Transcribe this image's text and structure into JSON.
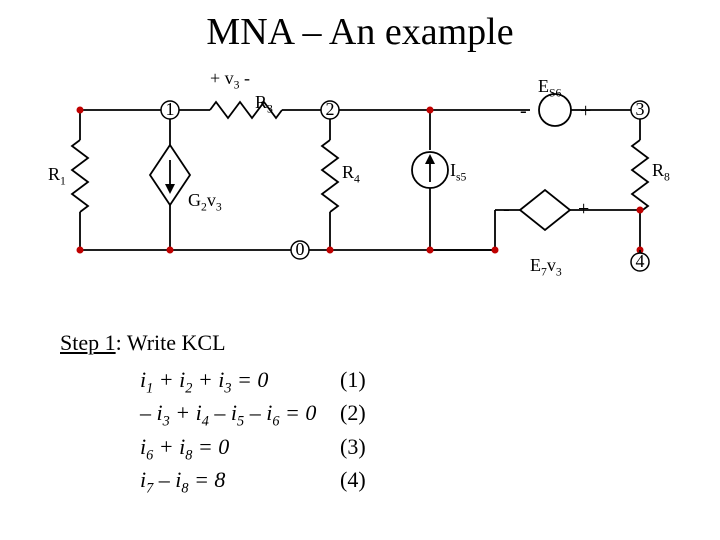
{
  "title": "MNA – An example",
  "step": {
    "label": "Step 1",
    "text": ": Write KCL"
  },
  "nodes": {
    "n1": "1",
    "n2": "2",
    "n3": "3",
    "n4": "4",
    "n0": "0"
  },
  "labels": {
    "v3": "+ v",
    "v3sub": "3",
    "v3tail": " -",
    "R3": "R",
    "R3sub": "3",
    "R1": "R",
    "R1sub": "1",
    "R4": "R",
    "R4sub": "4",
    "R8": "R",
    "R8sub": "8",
    "G2v3_G": "G",
    "G2v3_2": "2",
    "G2v3_v": "v",
    "G2v3_3": "3",
    "Is5_I": "I",
    "Is5_s": "s5",
    "Es6_E": "E",
    "Es6_s": "S6",
    "E7v3_E": "E",
    "E7v3_7": "7",
    "E7v3_v": "v",
    "E7v3_3": "3",
    "plus": "+",
    "minus": "-"
  },
  "equations": [
    {
      "lhs_html": "i<sub>1</sub> + i<sub>2</sub> + i<sub>3</sub> = 0",
      "rhs": "(1)"
    },
    {
      "lhs_html": "– i<sub>3</sub> + i<sub>4</sub> – i<sub>5</sub> – i<sub>6</sub> = 0",
      "rhs": "(2)"
    },
    {
      "lhs_html": "i<sub>6</sub> + i<sub>8</sub> = 0",
      "rhs": "(3)"
    },
    {
      "lhs_html": "i<sub>7</sub> – i<sub>8</sub> = 8",
      "rhs": "(4)"
    }
  ],
  "geometry": {
    "topY": 50,
    "midY": 120,
    "botY": 190,
    "colA": 40,
    "col1": 130,
    "col2": 290,
    "colI": 390,
    "col3": 600,
    "col4": 600
  },
  "style": {
    "wire_color": "#000000",
    "dot_color": "#c00000",
    "node_radius": 9,
    "dot_radius": 3.5
  }
}
